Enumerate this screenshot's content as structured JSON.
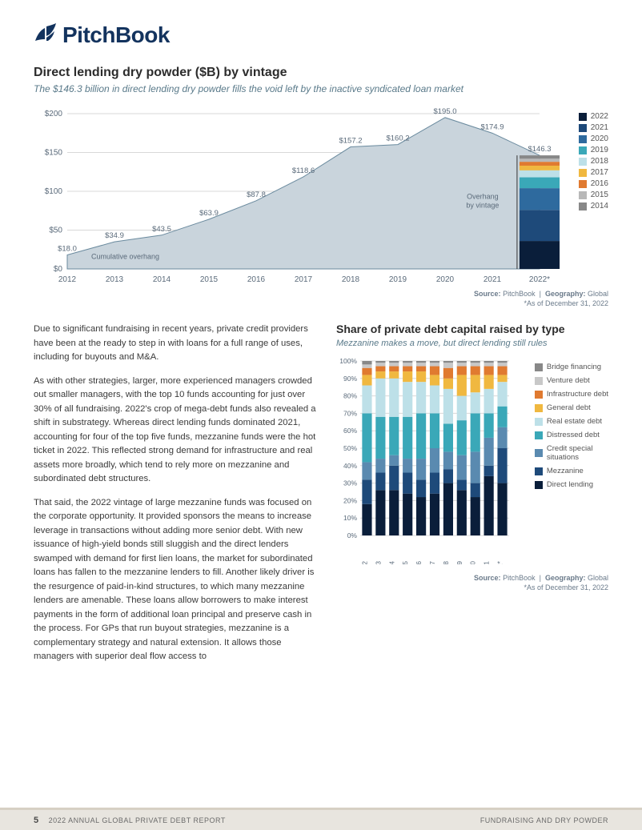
{
  "brand": {
    "name": "PitchBook",
    "color": "#13335e"
  },
  "chart1": {
    "type": "area",
    "title": "Direct lending dry powder ($B) by vintage",
    "subtitle": "The $146.3 billion in direct lending dry powder fills the void left by the inactive syndicated loan market",
    "years": [
      "2012",
      "2013",
      "2014",
      "2015",
      "2016",
      "2017",
      "2018",
      "2019",
      "2020",
      "2021",
      "2022*"
    ],
    "values": [
      18.0,
      34.9,
      43.5,
      63.9,
      87.8,
      118.6,
      157.2,
      160.2,
      195.0,
      174.9,
      146.3
    ],
    "value_labels": [
      "$18.0",
      "$34.9",
      "$43.5",
      "$63.9",
      "$87.8",
      "$118.6",
      "$157.2",
      "$160.2",
      "$195.0",
      "$174.9",
      "$146.3"
    ],
    "ylim": [
      0,
      200
    ],
    "ytick_step": 50,
    "ylabels": [
      "$0",
      "$50",
      "$100",
      "$150",
      "$200"
    ],
    "area_fill": "#c9d4dc",
    "area_stroke": "#6a8a9e",
    "grid_color": "#d8d8d8",
    "axis_color": "#888",
    "label_color": "#5a6a7a",
    "label_fontsize": 10,
    "annotation_cumulative": "Cumulative overhang",
    "annotation_overhang": "Overhang\nby vintage",
    "stack_2022": [
      {
        "y": "2022",
        "h": 36,
        "c": "#0a1e3a"
      },
      {
        "y": "2021",
        "h": 40,
        "c": "#1e4a7a"
      },
      {
        "y": "2020",
        "h": 28,
        "c": "#2e6a9e"
      },
      {
        "y": "2019",
        "h": 14,
        "c": "#3aa8b8"
      },
      {
        "y": "2018",
        "h": 9,
        "c": "#bde0e8"
      },
      {
        "y": "2017",
        "h": 6,
        "c": "#f0b840"
      },
      {
        "y": "2016",
        "h": 5,
        "c": "#e07a30"
      },
      {
        "y": "2015",
        "h": 4,
        "c": "#b8b8b8"
      },
      {
        "y": "2014",
        "h": 4.3,
        "c": "#888888"
      }
    ],
    "legend": [
      {
        "label": "2022",
        "color": "#0a1e3a"
      },
      {
        "label": "2021",
        "color": "#1e4a7a"
      },
      {
        "label": "2020",
        "color": "#2e6a9e"
      },
      {
        "label": "2019",
        "color": "#3aa8b8"
      },
      {
        "label": "2018",
        "color": "#bde0e8"
      },
      {
        "label": "2017",
        "color": "#f0b840"
      },
      {
        "label": "2016",
        "color": "#e07a30"
      },
      {
        "label": "2015",
        "color": "#b8b8b8"
      },
      {
        "label": "2014",
        "color": "#888888"
      }
    ],
    "source_label": "Source:",
    "source_value": "PitchBook",
    "geo_label": "Geography:",
    "geo_value": "Global",
    "asof": "*As of December 31, 2022"
  },
  "body": {
    "p1": "Due to significant fundraising in recent years, private credit providers have been at the ready to step in with loans for a full range of uses, including for buyouts and M&A.",
    "p2": "As with other strategies, larger, more experienced managers crowded out smaller managers, with the top 10 funds accounting for just over 30% of all fundraising. 2022's crop of mega-debt funds also revealed a shift in substrategy. Whereas direct lending funds dominated 2021, accounting for four of the top five funds, mezzanine funds were the hot ticket in 2022. This reflected strong demand for infrastructure and real assets more broadly, which tend to rely more on mezzanine and subordinated debt structures.",
    "p3": "That said, the 2022 vintage of large mezzanine funds was focused on the corporate opportunity. It provided sponsors the means to increase leverage in transactions without adding more senior debt. With new issuance of high-yield bonds still sluggish and the direct lenders swamped with demand for first lien loans, the market for subordinated loans has fallen to the mezzanine lenders to fill. Another likely driver is the resurgence of paid-in-kind structures, to which many mezzanine lenders are amenable. These loans allow borrowers to make interest payments in the form of additional loan principal and preserve cash in the process. For GPs that run buyout strategies, mezzanine is a complementary strategy and natural extension. It allows those managers with superior deal flow access to"
  },
  "chart2": {
    "type": "stacked-bar",
    "title": "Share of private debt capital raised by type",
    "subtitle": "Mezzanine makes a move, but direct lending still rules",
    "years": [
      "2012",
      "2013",
      "2014",
      "2015",
      "2016",
      "2017",
      "2018",
      "2019",
      "2020",
      "2021",
      "2022*"
    ],
    "ylim": [
      0,
      100
    ],
    "ytick_step": 10,
    "ylabels": [
      "0%",
      "10%",
      "20%",
      "30%",
      "40%",
      "50%",
      "60%",
      "70%",
      "80%",
      "90%",
      "100%"
    ],
    "grid_color": "#d8d8d8",
    "axis_color": "#888",
    "label_color": "#5a6a7a",
    "bar_width": 0.72,
    "categories": [
      {
        "key": "direct_lending",
        "label": "Direct lending",
        "color": "#0a1e3a"
      },
      {
        "key": "mezzanine",
        "label": "Mezzanine",
        "color": "#1e4a7a"
      },
      {
        "key": "credit_special",
        "label": "Credit special\nsituations",
        "color": "#5a8ab0"
      },
      {
        "key": "distressed",
        "label": "Distressed debt",
        "color": "#3aa8b8"
      },
      {
        "key": "real_estate",
        "label": "Real estate debt",
        "color": "#bde0e8"
      },
      {
        "key": "general",
        "label": "General debt",
        "color": "#f0b840"
      },
      {
        "key": "infrastructure",
        "label": "Infrastructure debt",
        "color": "#e07a30"
      },
      {
        "key": "venture",
        "label": "Venture debt",
        "color": "#c8c8c8"
      },
      {
        "key": "bridge",
        "label": "Bridge financing",
        "color": "#888888"
      }
    ],
    "data": {
      "direct_lending": [
        18,
        26,
        26,
        24,
        22,
        24,
        30,
        26,
        22,
        34,
        30
      ],
      "mezzanine": [
        14,
        10,
        14,
        12,
        10,
        12,
        8,
        6,
        8,
        6,
        20
      ],
      "credit_special": [
        10,
        8,
        6,
        8,
        12,
        14,
        10,
        14,
        18,
        16,
        12
      ],
      "distressed": [
        28,
        24,
        22,
        24,
        26,
        20,
        16,
        20,
        22,
        14,
        12
      ],
      "real_estate": [
        16,
        22,
        22,
        20,
        18,
        16,
        20,
        14,
        12,
        14,
        14
      ],
      "general": [
        6,
        4,
        4,
        6,
        6,
        6,
        6,
        12,
        10,
        8,
        4
      ],
      "infrastructure": [
        4,
        3,
        3,
        3,
        3,
        5,
        6,
        5,
        5,
        5,
        5
      ],
      "venture": [
        2,
        2,
        2,
        2,
        2,
        2,
        3,
        2,
        2,
        2,
        2
      ],
      "bridge": [
        2,
        1,
        1,
        1,
        1,
        1,
        1,
        1,
        1,
        1,
        1
      ]
    },
    "source_label": "Source:",
    "source_value": "PitchBook",
    "geo_label": "Geography:",
    "geo_value": "Global",
    "asof": "*As of December 31, 2022"
  },
  "footer": {
    "page": "5",
    "report": "2022 ANNUAL GLOBAL PRIVATE DEBT REPORT",
    "section": "FUNDRAISING AND DRY POWDER"
  }
}
